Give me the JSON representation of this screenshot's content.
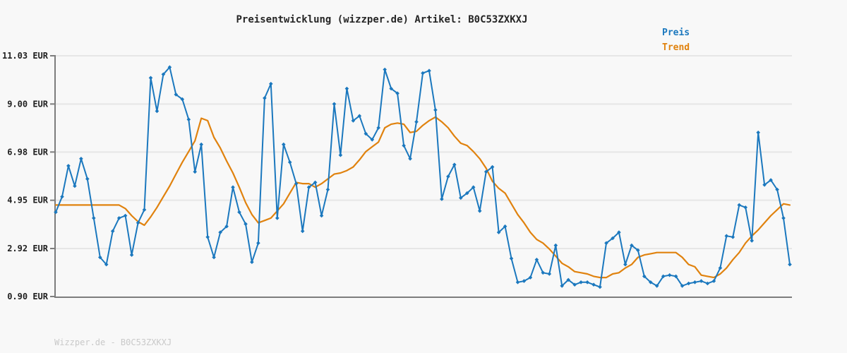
{
  "title": "Preisentwicklung (wizzper.de) Artikel: B0C53ZXKXJ",
  "watermark": "Wizzper.de - B0C53ZXKXJ",
  "colors": {
    "background": "#f8f8f8",
    "price_line": "#1b78be",
    "trend_line": "#e0820e",
    "axis": "#7d7d7d",
    "gridline": "#e6e6e6",
    "tick_label": "#1f1f1f",
    "title_text": "#262626",
    "watermark_text": "#c9c9c9"
  },
  "legend": {
    "items": [
      {
        "label": "Preis",
        "color": "#1b78be"
      },
      {
        "label": "Trend",
        "color": "#e0820e"
      }
    ]
  },
  "chart_data": {
    "type": "line",
    "title": "Preisentwicklung (wizzper.de) Artikel: B0C53ZXKXJ",
    "xlabel": "",
    "ylabel": "EUR",
    "ylim": [
      0.9,
      11.03
    ],
    "grid": true,
    "legend_position": "top-right",
    "x_tick_labels": [],
    "y_ticks": [
      {
        "value": 11.03,
        "label": "11.03 EUR"
      },
      {
        "value": 9.0,
        "label": "9.00 EUR"
      },
      {
        "value": 6.98,
        "label": "6.98 EUR"
      },
      {
        "value": 4.95,
        "label": "4.95 EUR"
      },
      {
        "value": 2.92,
        "label": "2.92 EUR"
      },
      {
        "value": 0.9,
        "label": "0.90 EUR"
      }
    ],
    "series": [
      {
        "name": "Preis",
        "color": "#1b78be",
        "markers": true,
        "values": [
          4.45,
          5.1,
          6.4,
          5.55,
          6.7,
          5.85,
          4.2,
          2.55,
          2.25,
          3.65,
          4.2,
          4.3,
          2.65,
          4.0,
          4.55,
          10.1,
          8.7,
          10.25,
          10.55,
          9.4,
          9.2,
          8.35,
          6.15,
          7.3,
          3.4,
          2.55,
          3.6,
          3.85,
          5.5,
          4.45,
          3.95,
          2.35,
          3.15,
          9.25,
          9.85,
          4.2,
          7.3,
          6.55,
          5.65,
          3.65,
          5.5,
          5.7,
          4.3,
          5.4,
          9.0,
          6.85,
          9.65,
          8.3,
          8.5,
          7.75,
          7.5,
          8.0,
          10.45,
          9.65,
          9.45,
          7.25,
          6.7,
          8.25,
          10.3,
          10.4,
          8.75,
          5.0,
          5.95,
          6.45,
          5.05,
          5.25,
          5.5,
          4.5,
          6.15,
          6.35,
          3.6,
          3.85,
          2.5,
          1.5,
          1.55,
          1.7,
          2.45,
          1.9,
          1.85,
          3.05,
          1.35,
          1.6,
          1.4,
          1.5,
          1.5,
          1.4,
          1.3,
          3.15,
          3.35,
          3.6,
          2.25,
          3.05,
          2.85,
          1.75,
          1.5,
          1.35,
          1.75,
          1.8,
          1.75,
          1.35,
          1.45,
          1.5,
          1.55,
          1.45,
          1.55,
          2.1,
          3.45,
          3.4,
          4.75,
          4.65,
          3.25,
          7.8,
          5.6,
          5.8,
          5.4,
          4.2,
          2.25
        ]
      },
      {
        "name": "Trend",
        "color": "#e0820e",
        "markers": false,
        "values": [
          4.75,
          4.75,
          4.75,
          4.75,
          4.75,
          4.75,
          4.75,
          4.75,
          4.75,
          4.75,
          4.75,
          4.6,
          4.3,
          4.05,
          3.9,
          4.25,
          4.65,
          5.1,
          5.55,
          6.05,
          6.55,
          7.0,
          7.45,
          8.4,
          8.3,
          7.6,
          7.15,
          6.6,
          6.1,
          5.5,
          4.85,
          4.35,
          4.0,
          4.1,
          4.2,
          4.5,
          4.8,
          5.25,
          5.7,
          5.65,
          5.65,
          5.5,
          5.65,
          5.85,
          6.05,
          6.1,
          6.2,
          6.35,
          6.65,
          7.0,
          7.2,
          7.4,
          8.0,
          8.15,
          8.2,
          8.15,
          7.8,
          7.85,
          8.1,
          8.3,
          8.45,
          8.25,
          8.0,
          7.65,
          7.35,
          7.25,
          7.0,
          6.7,
          6.3,
          5.75,
          5.45,
          5.25,
          4.8,
          4.35,
          4.0,
          3.6,
          3.3,
          3.15,
          2.9,
          2.6,
          2.3,
          2.15,
          1.95,
          1.9,
          1.85,
          1.75,
          1.7,
          1.7,
          1.85,
          1.9,
          2.1,
          2.25,
          2.55,
          2.65,
          2.7,
          2.75,
          2.75,
          2.75,
          2.75,
          2.55,
          2.25,
          2.15,
          1.8,
          1.75,
          1.7,
          1.85,
          2.1,
          2.45,
          2.75,
          3.15,
          3.45,
          3.7,
          4.0,
          4.3,
          4.55,
          4.8,
          4.75
        ]
      }
    ]
  }
}
